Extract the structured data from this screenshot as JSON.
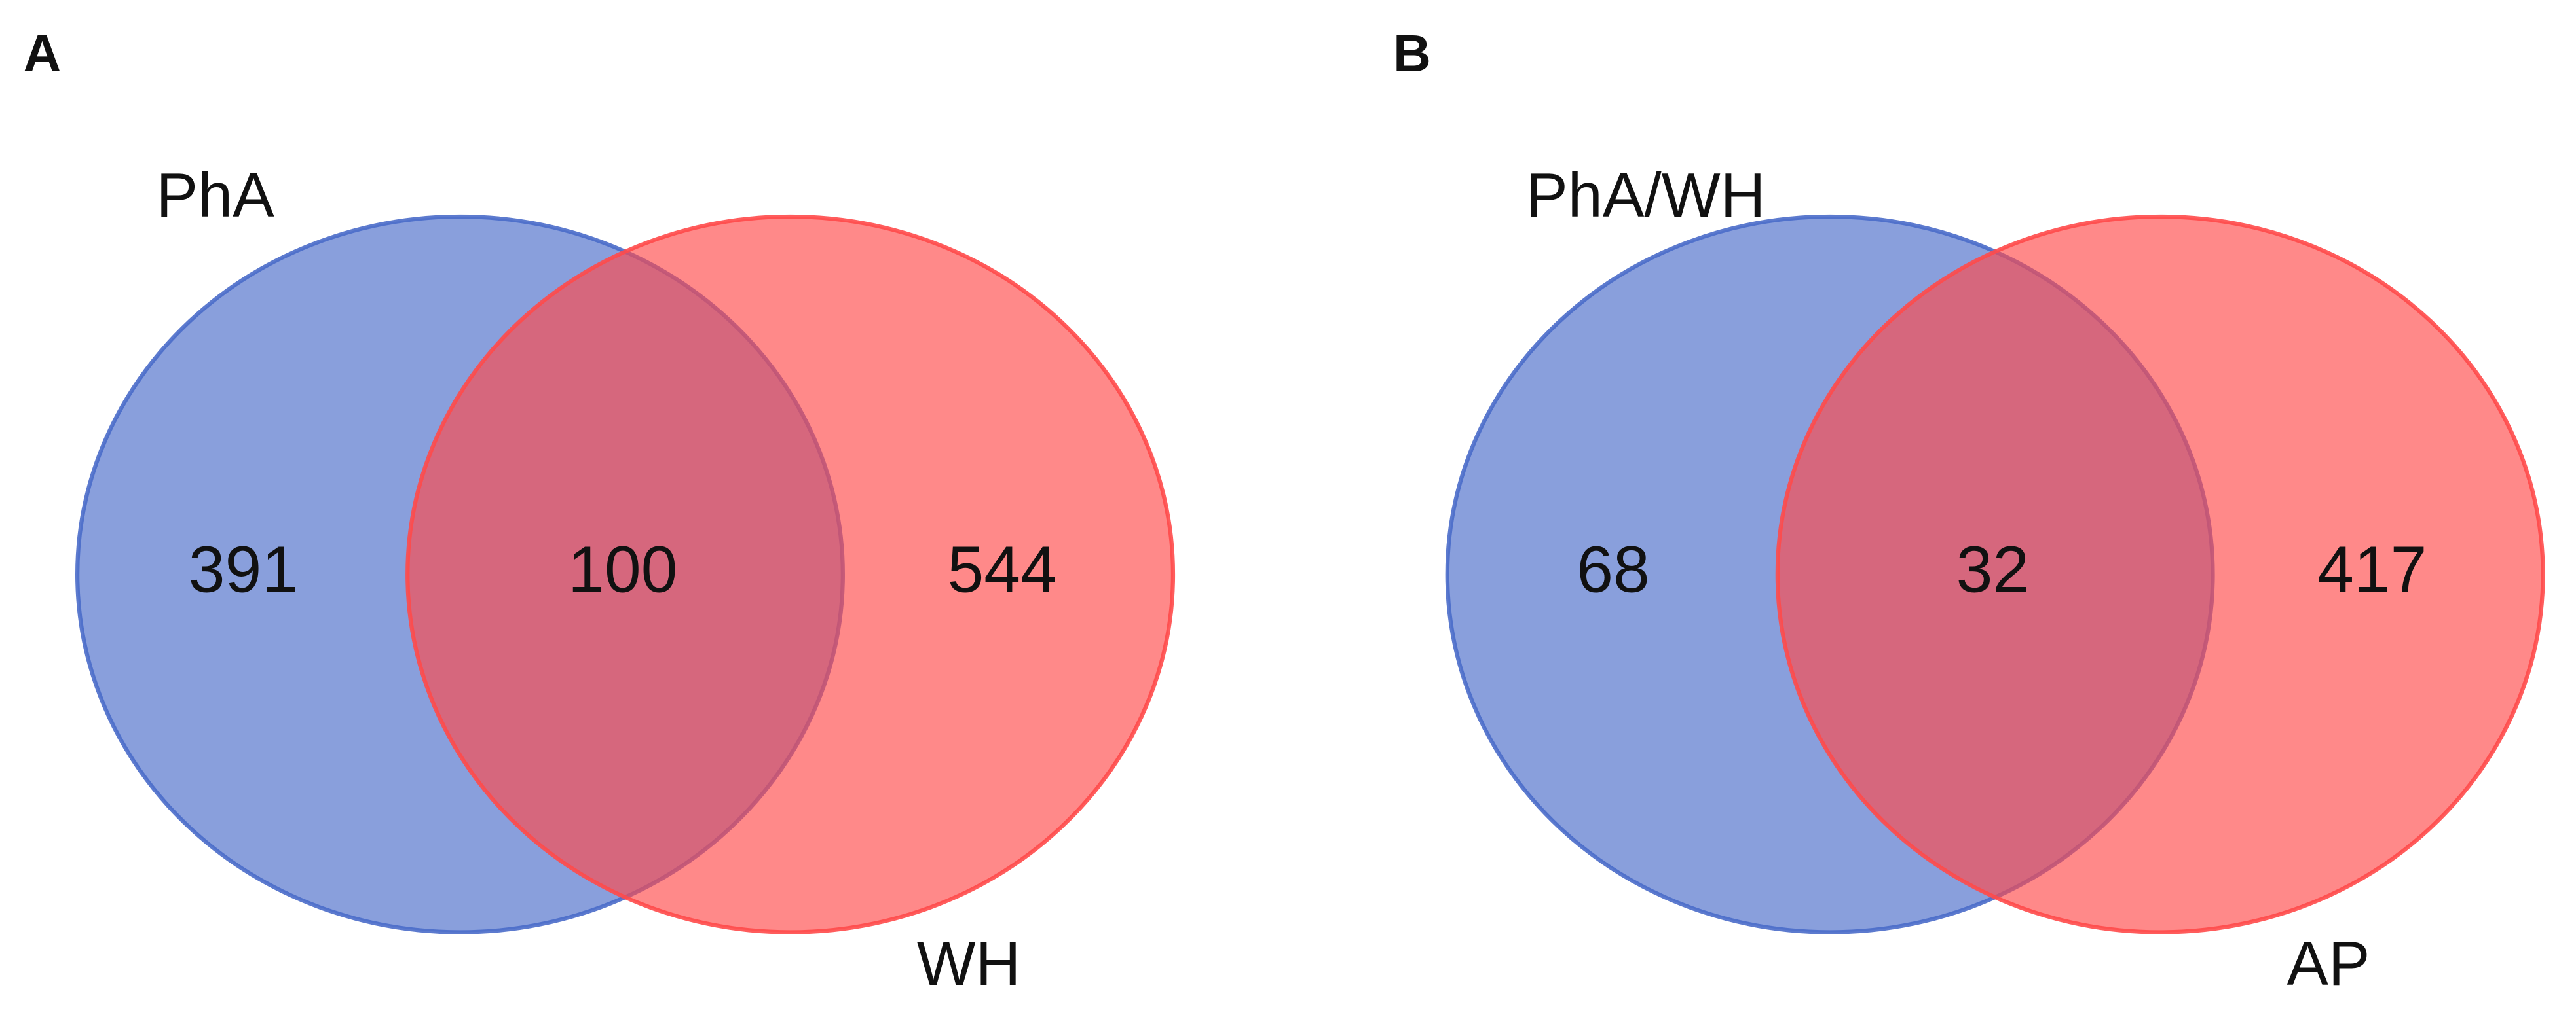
{
  "chart_data": [
    {
      "type": "venn",
      "panel": "A",
      "sets": [
        {
          "name": "PhA",
          "color": "#4a6cc9"
        },
        {
          "name": "WH",
          "color": "#ff4a4a"
        }
      ],
      "values": [
        391,
        100,
        544
      ]
    },
    {
      "type": "venn",
      "panel": "B",
      "sets": [
        {
          "name": "PhA/WH",
          "color": "#4a6cc9"
        },
        {
          "name": "AP",
          "color": "#ff4a4a"
        }
      ],
      "values": [
        68,
        32,
        417
      ]
    }
  ]
}
